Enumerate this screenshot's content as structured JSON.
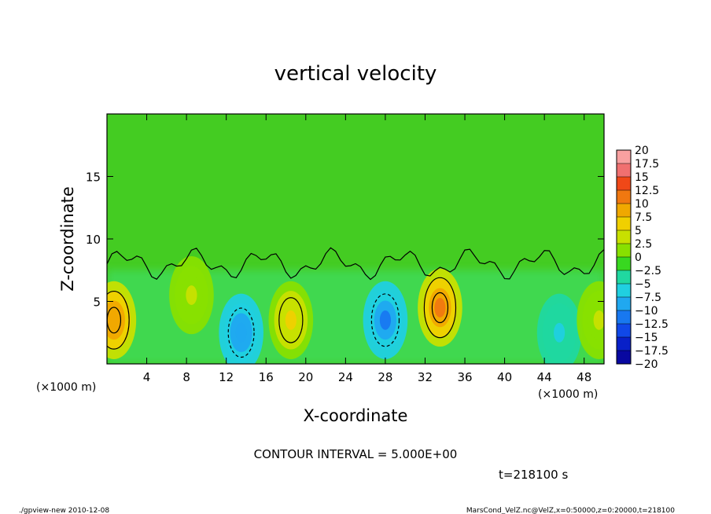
{
  "chart_data": {
    "type": "heatmap",
    "title": "vertical velocity",
    "xlabel": "X-coordinate",
    "ylabel": "Z-coordinate",
    "x_unit": "(×1000 m)",
    "y_unit": "(×1000 m)",
    "xlim": [
      0,
      50
    ],
    "ylim": [
      0,
      20
    ],
    "x_ticks": [
      4,
      8,
      12,
      16,
      20,
      24,
      28,
      32,
      36,
      40,
      44,
      48
    ],
    "y_ticks": [
      5,
      10,
      15
    ],
    "x_tick_labels": [
      "4",
      "8",
      "12",
      "16",
      "20",
      "24",
      "28",
      "32",
      "36",
      "40",
      "44",
      "48"
    ],
    "y_tick_labels": [
      "5",
      "10",
      "15"
    ],
    "colorbar": {
      "min": -20,
      "max": 20,
      "step": 2.5,
      "labels": [
        "20",
        "17.5",
        "15",
        "12.5",
        "10",
        "7.5",
        "5",
        "2.5",
        "0",
        "−2.5",
        "−5",
        "−7.5",
        "−10",
        "−12.5",
        "−15",
        "−17.5",
        "−20"
      ],
      "colors": [
        "#f8a0a0",
        "#f07070",
        "#f04818",
        "#f07810",
        "#f0a800",
        "#f0d000",
        "#c8e000",
        "#88e000",
        "#38d820",
        "#20d8a0",
        "#20d0e0",
        "#20a8f0",
        "#1878f0",
        "#1048e8",
        "#0820c8",
        "#0808a0",
        "#6018a8"
      ]
    },
    "contour_interval_text": "CONTOUR INTERVAL = 5.000E+00",
    "time_text": "t=218100 s",
    "features": [
      {
        "x": 0.7,
        "z": 3.5,
        "value": 11
      },
      {
        "x": 8.5,
        "z": 5.5,
        "value": 4
      },
      {
        "x": 13.5,
        "z": 2.5,
        "value": -8
      },
      {
        "x": 18.5,
        "z": 3.5,
        "value": 7
      },
      {
        "x": 28.0,
        "z": 3.5,
        "value": -9
      },
      {
        "x": 33.5,
        "z": 4.5,
        "value": 12
      },
      {
        "x": 45.5,
        "z": 2.5,
        "value": -4
      },
      {
        "x": 49.5,
        "z": 3.5,
        "value": 4
      }
    ]
  },
  "footer": {
    "left": "./gpview-new  2010-12-08",
    "right": "MarsCond_VelZ.nc@VelZ,x=0:50000,z=0:20000,t=218100"
  }
}
